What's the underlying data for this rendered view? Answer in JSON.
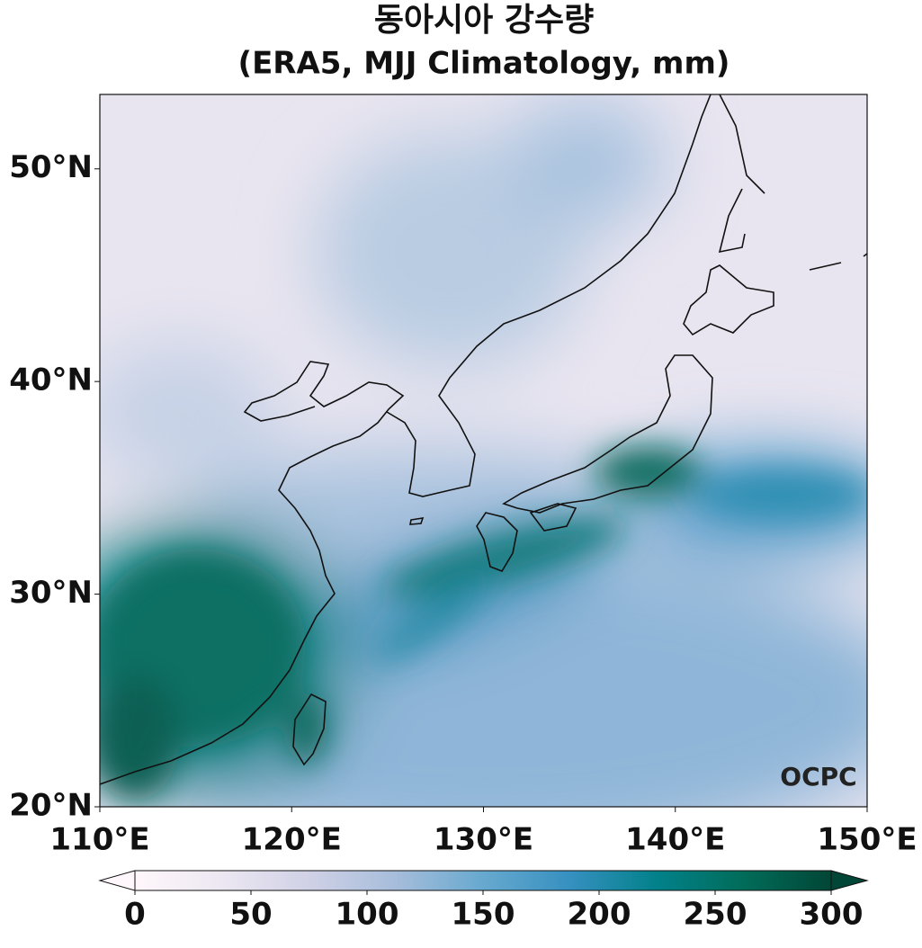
{
  "title": "동아시아 강수량",
  "subtitle": "(ERA5, MJJ Climatology, mm)",
  "map": {
    "xlim": [
      110,
      150
    ],
    "ylim": [
      20,
      53.5
    ],
    "xticks": [
      {
        "value": 110,
        "label": "110°E"
      },
      {
        "value": 120,
        "label": "120°E"
      },
      {
        "value": 130,
        "label": "130°E"
      },
      {
        "value": 140,
        "label": "140°E"
      },
      {
        "value": 150,
        "label": "150°E"
      }
    ],
    "yticks": [
      {
        "value": 20,
        "label": "20°N"
      },
      {
        "value": 30,
        "label": "30°N"
      },
      {
        "value": 40,
        "label": "40°N"
      },
      {
        "value": 50,
        "label": "50°N"
      }
    ]
  },
  "colorbar": {
    "range": [
      0,
      300
    ],
    "ticks": [
      0,
      50,
      100,
      150,
      200,
      250,
      300
    ],
    "extend": "both",
    "colors": [
      "#fff7fb",
      "#ece7f2",
      "#d0d1e6",
      "#a6bddb",
      "#67a9cf",
      "#3690c0",
      "#02818a",
      "#016c59",
      "#014636"
    ]
  },
  "logo": "OCPC"
}
